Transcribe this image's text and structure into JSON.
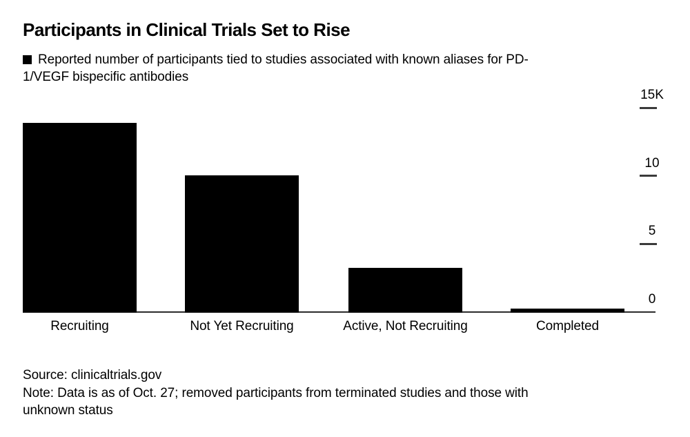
{
  "title": "Participants in Clinical Trials Set to Rise",
  "legend": {
    "swatch_color": "#000000",
    "text_lines": [
      "Reported number of participants tied to studies associated with known aliases for PD-",
      "1/VEGF bispecific antibodies"
    ]
  },
  "chart_data": {
    "type": "bar",
    "title": "Participants in Clinical Trials Set to Rise",
    "series_label": "Reported number of participants tied to studies associated with known aliases for PD-1/VEGF bispecific antibodies",
    "categories": [
      "Recruiting",
      "Not Yet Recruiting",
      "Active, Not Recruiting",
      "Completed"
    ],
    "values": [
      13900,
      10050,
      3250,
      250
    ],
    "ylim": [
      0,
      15000
    ],
    "yticks": [
      {
        "label": "15K",
        "value": 15000
      },
      {
        "label": "10",
        "value": 10000
      },
      {
        "label": "5",
        "value": 5000
      },
      {
        "label": "0",
        "value": 0
      }
    ],
    "axis_side": "right",
    "grid": false,
    "bar_color": "#000000",
    "background_color": "#ffffff"
  },
  "footer": {
    "source": "Source: clinicaltrials.gov",
    "note_lines": [
      "Note: Data is as of Oct. 27; removed participants from terminated studies and those with",
      "unknown status"
    ]
  }
}
